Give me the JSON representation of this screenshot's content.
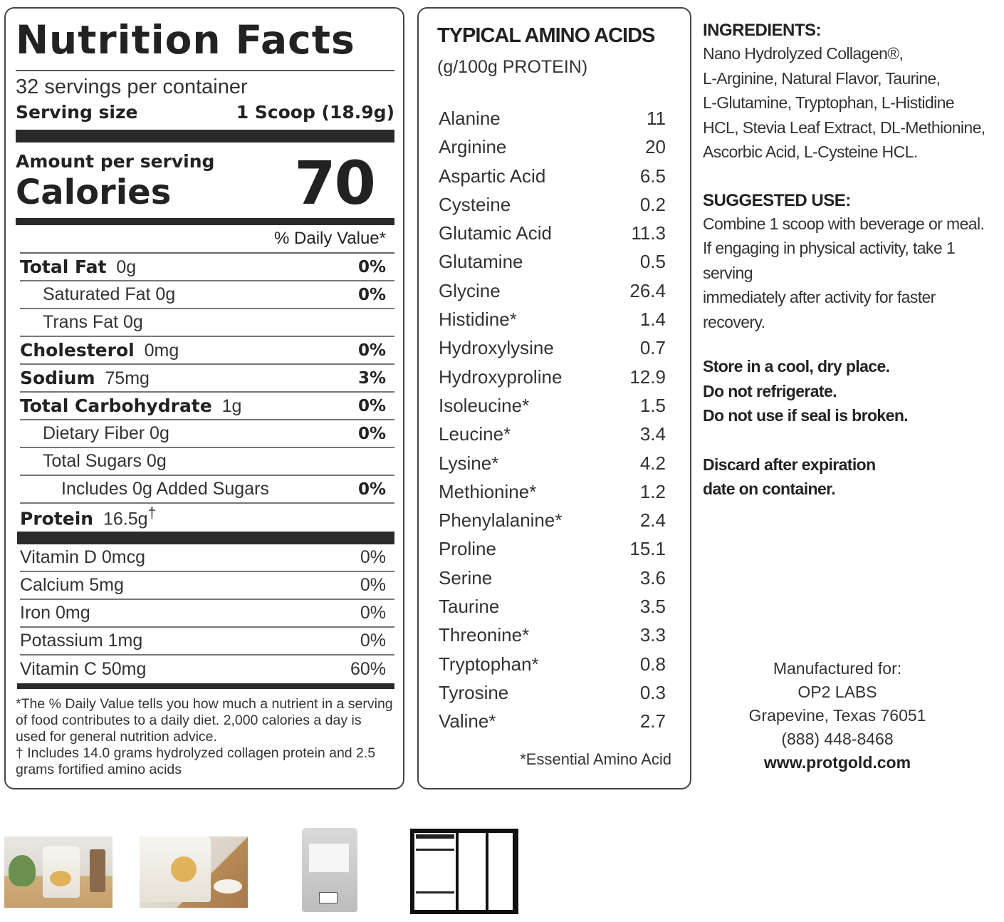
{
  "nutrition": {
    "title": "Nutrition Facts",
    "servings": "32 servings per container",
    "serving_size_label": "Serving size",
    "serving_size_value": "1 Scoop (18.9g)",
    "amount_label": "Amount per serving",
    "calories_label": "Calories",
    "calories_value": "70",
    "dv_header": "% Daily Value*",
    "rows": [
      {
        "bold": "Total Fat",
        "label": "0g",
        "pct": "0%"
      },
      {
        "bold": "",
        "label": "Saturated Fat  0g",
        "pct": "0%"
      },
      {
        "bold": "",
        "label": "Trans Fat  0g",
        "pct": ""
      },
      {
        "bold": "Cholesterol",
        "label": "0mg",
        "pct": "0%"
      },
      {
        "bold": "Sodium",
        "label": "75mg",
        "pct": "3%"
      },
      {
        "bold": "Total Carbohydrate",
        "label": "1g",
        "pct": "0%"
      },
      {
        "bold": "",
        "label": "Dietary Fiber 0g",
        "pct": "0%"
      },
      {
        "bold": "",
        "label": "Total Sugars 0g",
        "pct": ""
      },
      {
        "bold": "",
        "label": "Includes 0g Added Sugars",
        "pct": "0%"
      },
      {
        "bold": "Protein",
        "label": "16.5g",
        "sup": "†",
        "pct": ""
      }
    ],
    "vitamins": [
      {
        "label": "Vitamin D 0mcg",
        "pct": "0%"
      },
      {
        "label": "Calcium 5mg",
        "pct": "0%"
      },
      {
        "label": "Iron 0mg",
        "pct": "0%"
      },
      {
        "label": "Potassium 1mg",
        "pct": "0%"
      },
      {
        "label": "Vitamin C 50mg",
        "pct": "60%"
      }
    ],
    "footnote_1": "*The % Daily Value tells you how much a nutrient in a serving of food contributes to a daily diet. 2,000 calories a day is used for general nutrition advice.",
    "footnote_2": "† Includes 14.0 grams hydrolyzed collagen protein and 2.5 grams fortified amino acids"
  },
  "amino": {
    "title": "TYPICAL AMINO ACIDS",
    "subtitle": "(g/100g PROTEIN)",
    "items": [
      {
        "name": "Alanine",
        "value": "11"
      },
      {
        "name": "Arginine",
        "value": "20"
      },
      {
        "name": "Aspartic Acid",
        "value": "6.5"
      },
      {
        "name": "Cysteine",
        "value": "0.2"
      },
      {
        "name": "Glutamic Acid",
        "value": "11.3"
      },
      {
        "name": "Glutamine",
        "value": "0.5"
      },
      {
        "name": "Glycine",
        "value": "26.4"
      },
      {
        "name": "Histidine*",
        "value": "1.4"
      },
      {
        "name": "Hydroxylysine",
        "value": "0.7"
      },
      {
        "name": "Hydroxyproline",
        "value": "12.9"
      },
      {
        "name": "Isoleucine*",
        "value": "1.5"
      },
      {
        "name": "Leucine*",
        "value": "3.4"
      },
      {
        "name": "Lysine*",
        "value": "4.2"
      },
      {
        "name": "Methionine*",
        "value": "1.2"
      },
      {
        "name": "Phenylalanine*",
        "value": "2.4"
      },
      {
        "name": "Proline",
        "value": "15.1"
      },
      {
        "name": "Serine",
        "value": "3.6"
      },
      {
        "name": "Taurine",
        "value": "3.5"
      },
      {
        "name": "Threonine*",
        "value": "3.3"
      },
      {
        "name": "Tryptophan*",
        "value": "0.8"
      },
      {
        "name": "Tyrosine",
        "value": "0.3"
      },
      {
        "name": "Valine*",
        "value": "2.7"
      }
    ],
    "note": "*Essential Amino Acid"
  },
  "info": {
    "ingredients_head": "INGREDIENTS:",
    "ingredients_lines": [
      "Nano Hydrolyzed Collagen®,",
      "L-Arginine, Natural Flavor, Taurine,",
      "L-Glutamine, Tryptophan, L-Histidine",
      "HCL, Stevia Leaf Extract, DL-Methionine,",
      "Ascorbic Acid, L-Cysteine HCL."
    ],
    "use_head": "SUGGESTED USE:",
    "use_lines": [
      "Combine 1 scoop with beverage or meal.",
      "If engaging in physical activity, take 1 serving",
      "immediately after activity for faster recovery."
    ],
    "storage_lines": [
      "Store in a cool, dry place.",
      "Do not refrigerate.",
      "Do not use if seal is broken."
    ],
    "discard_lines": [
      "Discard after expiration",
      "date on container."
    ]
  },
  "manufacturer": {
    "line1": "Manufactured for:",
    "line2": "OP2 LABS",
    "line3": "Grapevine, Texas 76051",
    "phone": "(888) 448-8468",
    "url": "www.protgold.com"
  },
  "thumbnails": [
    {
      "name": "thumbnail-kitchen-scene"
    },
    {
      "name": "thumbnail-scoop-scene"
    },
    {
      "name": "thumbnail-pouch-back"
    },
    {
      "name": "thumbnail-label-closeup"
    }
  ]
}
